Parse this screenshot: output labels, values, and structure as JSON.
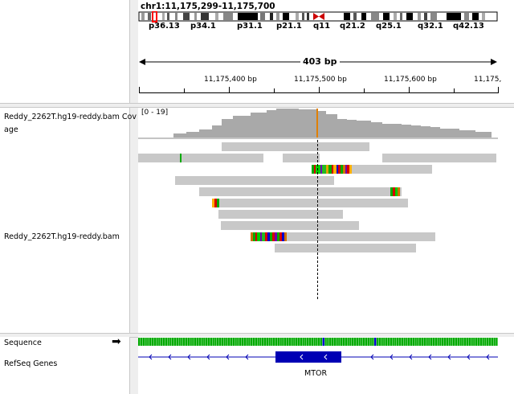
{
  "header": {
    "locus": "chr1:11,175,299-11,175,700",
    "span_label": "403 bp",
    "cytobands": [
      "p36.13",
      "p34.1",
      "p31.1",
      "p21.1",
      "q11",
      "q21.2",
      "q25.1",
      "q32.1",
      "q42.13"
    ],
    "ruler_ticks": [
      "11,175,400 bp",
      "11,175,500 bp",
      "11,175,600 bp",
      "11,175,"
    ]
  },
  "tracks": {
    "coverage_label_line1": "Reddy_2262T.hg19-reddy.bam Cov",
    "coverage_label_line2": "age",
    "coverage_range": "[0 - 19]",
    "alignment_label": "Reddy_2262T.hg19-reddy.bam",
    "sequence_label": "Sequence",
    "sequence_arrow": "➡",
    "refseq_label": "RefSeq Genes",
    "gene_name": "MTOR"
  },
  "colors": {
    "read": "#c8c8c8",
    "coverage": "#a9a9a9",
    "gene": "#0000b4",
    "centromere": "#cc0000"
  }
}
